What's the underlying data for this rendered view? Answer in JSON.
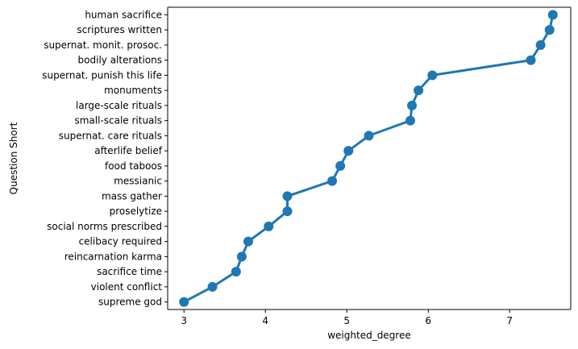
{
  "chart_data": {
    "type": "line",
    "xlabel": "weighted_degree",
    "ylabel": "Question Short",
    "xlim": [
      2.8,
      7.75
    ],
    "xticks": [
      3,
      4,
      5,
      6,
      7
    ],
    "grid": false,
    "color": "#1f77b4",
    "categories": [
      "human sacrifice",
      "scriptures written",
      "supernat. monit. prosoc.",
      "bodily alterations",
      "supernat. punish this life",
      "monuments",
      "large-scale rituals",
      "small-scale rituals",
      "supernat. care rituals",
      "afterlife belief",
      "food taboos",
      "messianic",
      "mass gather",
      "proselytize",
      "social norms prescribed",
      "celibacy required",
      "reincarnation karma",
      "sacrifice time",
      "violent conflict",
      "supreme god"
    ],
    "values": [
      7.53,
      7.49,
      7.38,
      7.26,
      6.05,
      5.88,
      5.8,
      5.78,
      5.27,
      5.02,
      4.92,
      4.82,
      4.27,
      4.27,
      4.04,
      3.79,
      3.71,
      3.64,
      3.35,
      3.0
    ]
  }
}
